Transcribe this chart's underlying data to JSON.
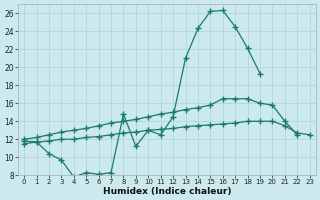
{
  "xlabel": "Humidex (Indice chaleur)",
  "xlim_min": -0.5,
  "xlim_max": 23.5,
  "ylim_min": 8,
  "ylim_max": 27,
  "yticks": [
    8,
    10,
    12,
    14,
    16,
    18,
    20,
    22,
    24,
    26
  ],
  "xticks": [
    0,
    1,
    2,
    3,
    4,
    5,
    6,
    7,
    8,
    9,
    10,
    11,
    12,
    13,
    14,
    15,
    16,
    17,
    18,
    19,
    20,
    21,
    22,
    23
  ],
  "bg_color": "#cce9ed",
  "grid_color": "#b0d8de",
  "line_color": "#1a7a6e",
  "line1_x": [
    0,
    1,
    2,
    3,
    4,
    5,
    6,
    7,
    8,
    9,
    10,
    11,
    12,
    13,
    14,
    15,
    16,
    17,
    18,
    19
  ],
  "line1_y": [
    11.8,
    11.7,
    10.4,
    9.7,
    7.8,
    8.3,
    8.1,
    8.3,
    14.8,
    11.2,
    13.0,
    12.5,
    14.5,
    21.0,
    24.3,
    26.2,
    26.3,
    24.5,
    22.1,
    19.3
  ],
  "line2_x": [
    0,
    1,
    2,
    3,
    4,
    5,
    6,
    7,
    8,
    9,
    10,
    11,
    12,
    13,
    14,
    15,
    16,
    17,
    18,
    19,
    20,
    21,
    22
  ],
  "line2_y": [
    12.0,
    12.2,
    12.5,
    12.8,
    13.0,
    13.2,
    13.5,
    13.8,
    14.0,
    14.2,
    14.5,
    14.8,
    15.0,
    15.3,
    15.5,
    15.8,
    16.5,
    16.5,
    16.5,
    16.0,
    15.8,
    14.0,
    12.5
  ],
  "line3_x": [
    0,
    1,
    2,
    3,
    4,
    5,
    6,
    7,
    8,
    9,
    10,
    11,
    12,
    13,
    14,
    15,
    16,
    17,
    18,
    19,
    20,
    21,
    22,
    23
  ],
  "line3_y": [
    11.5,
    11.7,
    11.8,
    12.0,
    12.0,
    12.2,
    12.3,
    12.5,
    12.7,
    12.8,
    13.0,
    13.1,
    13.2,
    13.4,
    13.5,
    13.6,
    13.7,
    13.8,
    14.0,
    14.0,
    14.0,
    13.5,
    12.7,
    12.5
  ]
}
